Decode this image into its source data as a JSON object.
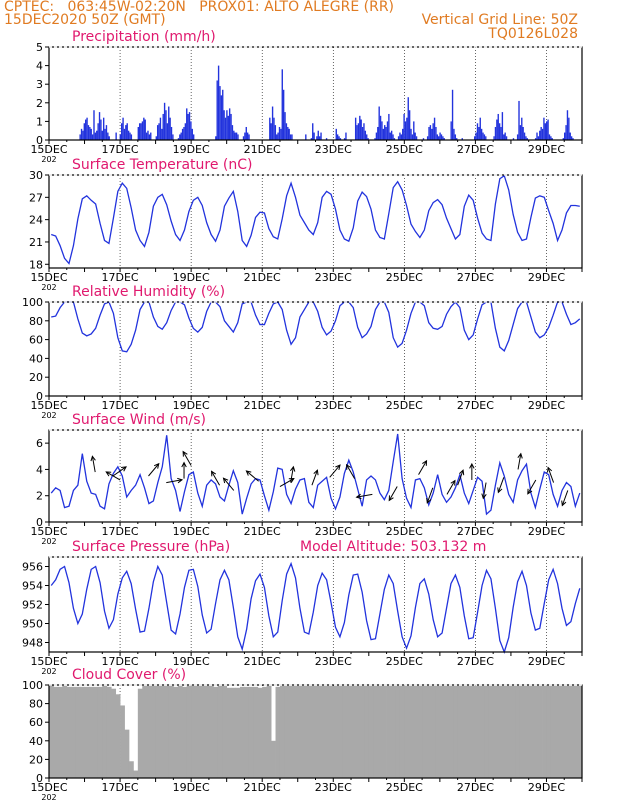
{
  "header": {
    "line1_left": "CPTEC:   063:45W-02:20N   PROX01: ALTO ALEGRE (RR)",
    "line2_left": "15DEC2020 50Z (GMT)",
    "line2_right": "Vertical Grid Line: 50Z",
    "line3_right": "TQ0126L028"
  },
  "colors": {
    "header": "#e07b22",
    "panel_title": "#e0196e",
    "series": "#2233dd",
    "wind_arrow": "#000000",
    "cloud": "#a9a9a9"
  },
  "x_axis": {
    "tick_labels": [
      "15DEC",
      "17DEC",
      "19DEC",
      "21DEC",
      "23DEC",
      "25DEC",
      "27DEC",
      "29DEC"
    ],
    "year_stub": "202"
  },
  "chart_data": [
    {
      "type": "bar",
      "title": "Precipitation (mm/h)",
      "ylim": [
        0,
        5
      ],
      "yticks": [
        0,
        1,
        2,
        3,
        4,
        5
      ],
      "x_range_days": [
        0,
        15
      ],
      "n_points": 360,
      "values": [
        0,
        0,
        0,
        0,
        0,
        0,
        0,
        0,
        0,
        0,
        0,
        0,
        0,
        0,
        0,
        0,
        0,
        0,
        0,
        0,
        0,
        0,
        0.3,
        0.6,
        0.5,
        0.9,
        1.1,
        1.2,
        0.8,
        0.7,
        0.6,
        0.3,
        1.6,
        0.4,
        0.5,
        0.9,
        1.5,
        1.1,
        0.5,
        1.2,
        0.6,
        0.8,
        0.4,
        0.2,
        0,
        0,
        0,
        0,
        0.4,
        0,
        0,
        0.3,
        0.9,
        1.2,
        0.6,
        0.8,
        0.9,
        0.5,
        0.4,
        0.3,
        0,
        0,
        0,
        0,
        0.7,
        0.9,
        0.9,
        1.0,
        1.2,
        1.1,
        0.4,
        0.5,
        0.3,
        0.4,
        0,
        0,
        0,
        0.2,
        0.8,
        0.9,
        1.2,
        0.6,
        1.4,
        2.0,
        1.6,
        0.9,
        1.8,
        1.2,
        0.7,
        0.3,
        0,
        0,
        0,
        0.1,
        0.3,
        0.4,
        0.6,
        0.7,
        0.9,
        1.7,
        1.4,
        1.5,
        1.0,
        0.6,
        0.3,
        0,
        0,
        0,
        0,
        0,
        0,
        0,
        0,
        0,
        0,
        0,
        0,
        0,
        0,
        0,
        0.2,
        3.2,
        4.0,
        2.9,
        2.4,
        2.7,
        1.6,
        1.2,
        1.6,
        1.3,
        1.7,
        1.4,
        0.8,
        0.5,
        0.4,
        0.4,
        0.3,
        0,
        0,
        0,
        0.2,
        0.4,
        0.7,
        0.4,
        0.3,
        0,
        0,
        0,
        0,
        0,
        0,
        0,
        0,
        0,
        0,
        0,
        0,
        0,
        0,
        1.2,
        0.9,
        1.8,
        1.2,
        0.8,
        0.3,
        0.4,
        0.7,
        0.6,
        3.8,
        2.7,
        1.5,
        0.9,
        0.7,
        0.6,
        0.3,
        0.3,
        0,
        0,
        0,
        0,
        0,
        0,
        0,
        0,
        0,
        0.3,
        0,
        0,
        0,
        0.1,
        0.9,
        0.4,
        0,
        0.2,
        0.5,
        0.2,
        0.4,
        0,
        0,
        0,
        0.1,
        0,
        0,
        0,
        0,
        0,
        0,
        0.6,
        0.3,
        0.2,
        0.1,
        0,
        0,
        0.1,
        0.4,
        0,
        0,
        0,
        0,
        0,
        0,
        1.2,
        0.8,
        0.9,
        1.3,
        1.1,
        0.7,
        0.9,
        0.5,
        0.3,
        0.1,
        0,
        0,
        0,
        0,
        0.1,
        0.4,
        0.7,
        1.8,
        1.3,
        1.0,
        0.6,
        0.8,
        0.7,
        1.0,
        1.4,
        0.4,
        0.5,
        0.3,
        0.1,
        0,
        0,
        0.2,
        0.4,
        0.3,
        0.6,
        1.4,
        1.0,
        1.2,
        2.3,
        1.6,
        0.6,
        0.3,
        1.0,
        0.4,
        0.2,
        0,
        0,
        0,
        0,
        0.1,
        0,
        0,
        0.2,
        0.7,
        0.8,
        0.6,
        0.9,
        1.2,
        0.7,
        0.3,
        0.2,
        0.4,
        0.3,
        0.2,
        0.1,
        0,
        0,
        0,
        0,
        1.0,
        2.7,
        0.6,
        0.3,
        0.1,
        0,
        0,
        0,
        0.1,
        0,
        0,
        0,
        0,
        0,
        0,
        0,
        0,
        0.2,
        0.4,
        0.9,
        0.7,
        1.2,
        0.6,
        0.4,
        0.3,
        0.2,
        0,
        0,
        0,
        0,
        0,
        0.2,
        0.7,
        1.1,
        1.4,
        0.9,
        0.7,
        1.5,
        0.3,
        0.4,
        0.2,
        0,
        0,
        0,
        0,
        0.1,
        0,
        0,
        0.3,
        2.1,
        0.8,
        1.2,
        0.7,
        0.4,
        0.2,
        0.1,
        0,
        0,
        0,
        0,
        0,
        0.1,
        0.4,
        0.2,
        0.5,
        0.7,
        0.6,
        1.2,
        0.9,
        1.0,
        1.1,
        0.3,
        0.2,
        0.1,
        0,
        0,
        0,
        0,
        0,
        0,
        0,
        0.1,
        0.4,
        0.8,
        1.6,
        1.2,
        0.4,
        0.2,
        0.1,
        0,
        0,
        0,
        0,
        0,
        0
      ]
    },
    {
      "type": "line",
      "title": "Surface Temperature (nC)",
      "ylim": [
        17.5,
        30
      ],
      "yticks": [
        18,
        21,
        24,
        27,
        30
      ],
      "x_range_days": [
        0,
        15
      ],
      "n_points": 120,
      "values": [
        22,
        21.8,
        20.5,
        18.8,
        18.1,
        20.5,
        24.1,
        26.8,
        27.2,
        26.6,
        26.1,
        23.5,
        21.2,
        20.8,
        24.2,
        27.8,
        28.9,
        28.2,
        25.6,
        22.6,
        21.2,
        20.4,
        22.3,
        25.8,
        27,
        27.4,
        26,
        23.8,
        22,
        21.2,
        22.6,
        25.1,
        26.6,
        27,
        25.9,
        23.6,
        22,
        21.1,
        22.6,
        25.8,
        26.9,
        27.8,
        25.1,
        21.2,
        20.4,
        21.9,
        24.3,
        25,
        24.9,
        22.8,
        21.7,
        21.4,
        24.1,
        27.2,
        28.9,
        27,
        24.6,
        23.6,
        22.6,
        22,
        23.6,
        27,
        27.8,
        27.4,
        25.4,
        22.6,
        21.4,
        21.1,
        22.9,
        26.5,
        27.7,
        27.1,
        25.4,
        22.6,
        21.6,
        21.4,
        24.8,
        28.3,
        29.1,
        28,
        25.9,
        23.4,
        22.4,
        21.6,
        22.6,
        25.2,
        26.3,
        26.7,
        26,
        24.2,
        22.8,
        21.4,
        22,
        25.8,
        27.3,
        26.6,
        24.2,
        22.2,
        21.4,
        21.2,
        26.1,
        29.5,
        29.9,
        28,
        24.7,
        22.3,
        21.2,
        21.4,
        24.3,
        26.9,
        27.2,
        27,
        25.2,
        23.5,
        21.2,
        22.6,
        24.9,
        25.9,
        25.9,
        25.8
      ]
    },
    {
      "type": "line",
      "title": "Relative Humidity (%)",
      "ylim": [
        0,
        100
      ],
      "yticks": [
        0,
        20,
        40,
        60,
        80,
        100
      ],
      "x_range_days": [
        0,
        15
      ],
      "n_points": 120,
      "values": [
        84,
        85,
        94,
        100,
        100,
        100,
        82,
        67,
        64,
        66,
        72,
        86,
        98,
        100,
        88,
        62,
        48,
        47,
        55,
        70,
        92,
        100,
        100,
        84,
        74,
        71,
        78,
        91,
        100,
        100,
        97,
        83,
        72,
        68,
        73,
        90,
        100,
        100,
        95,
        80,
        74,
        68,
        78,
        98,
        100,
        100,
        86,
        76,
        76,
        88,
        98,
        100,
        92,
        70,
        55,
        62,
        84,
        92,
        100,
        100,
        90,
        73,
        65,
        69,
        80,
        96,
        100,
        100,
        94,
        73,
        62,
        66,
        74,
        92,
        100,
        100,
        89,
        62,
        52,
        56,
        70,
        88,
        100,
        100,
        96,
        78,
        72,
        71,
        74,
        87,
        95,
        100,
        94,
        70,
        60,
        65,
        82,
        97,
        100,
        100,
        72,
        52,
        48,
        59,
        76,
        93,
        100,
        100,
        84,
        68,
        62,
        65,
        73,
        86,
        100,
        100,
        87,
        76,
        78,
        82
      ]
    },
    {
      "type": "line",
      "title": "Surface Wind (m/s)",
      "ylim": [
        0,
        7
      ],
      "yticks": [
        0,
        2,
        4,
        6
      ],
      "x_range_days": [
        0,
        15
      ],
      "n_points": 120,
      "values": [
        2.2,
        2.6,
        2.4,
        1.1,
        1.2,
        2.4,
        2.8,
        5.2,
        3.1,
        2.2,
        2.1,
        1.2,
        1.0,
        2.9,
        3.7,
        4.2,
        3.5,
        1.9,
        2.4,
        2.8,
        3.6,
        2.6,
        1.4,
        1.6,
        3.0,
        4.2,
        6.6,
        3.3,
        2.4,
        0.8,
        2.3,
        3.6,
        3.8,
        2.2,
        1.2,
        2.8,
        3.2,
        2.9,
        1.9,
        1.6,
        2.8,
        3.9,
        3.0,
        0.6,
        1.8,
        2.9,
        3.3,
        3.2,
        2.0,
        0.9,
        2.3,
        4.1,
        4.0,
        2.1,
        1.4,
        2.5,
        3.2,
        3.3,
        1.5,
        1.1,
        2.8,
        3.1,
        3.4,
        1.8,
        1.0,
        1.9,
        3.7,
        4.7,
        3.8,
        2.5,
        1.2,
        3.2,
        3.5,
        3.2,
        2.2,
        1.7,
        2.4,
        4.6,
        6.7,
        3.3,
        1.8,
        1.1,
        3.2,
        3.3,
        2.6,
        1.3,
        2.2,
        3.6,
        2.1,
        1.5,
        1.9,
        2.6,
        3.6,
        2.2,
        1.4,
        2.4,
        3.4,
        3.1,
        0.6,
        0.9,
        2.8,
        4.5,
        3.5,
        2.1,
        1.5,
        3.2,
        3.9,
        4.4,
        2.2,
        1.1,
        2.5,
        3.8,
        3.6,
        2.1,
        1.2,
        2.4,
        3.0,
        2.7,
        1.2,
        2.2
      ],
      "arrows": [
        {
          "day": 1.3,
          "speed": 3.8,
          "dir_deg": 100
        },
        {
          "day": 1.8,
          "speed": 3.5,
          "dir_deg": 35
        },
        {
          "day": 2.0,
          "speed": 3.2,
          "dir_deg": 150
        },
        {
          "day": 2.8,
          "speed": 3.5,
          "dir_deg": 50
        },
        {
          "day": 3.3,
          "speed": 3.0,
          "dir_deg": 10
        },
        {
          "day": 3.8,
          "speed": 3.3,
          "dir_deg": 90
        },
        {
          "day": 4.0,
          "speed": 4.3,
          "dir_deg": 120
        },
        {
          "day": 4.8,
          "speed": 2.8,
          "dir_deg": 120
        },
        {
          "day": 5.2,
          "speed": 2.4,
          "dir_deg": 130
        },
        {
          "day": 5.9,
          "speed": 3.1,
          "dir_deg": 140
        },
        {
          "day": 6.5,
          "speed": 2.7,
          "dir_deg": 30
        },
        {
          "day": 6.8,
          "speed": 3.0,
          "dir_deg": 80
        },
        {
          "day": 7.4,
          "speed": 2.8,
          "dir_deg": 70
        },
        {
          "day": 7.9,
          "speed": 3.4,
          "dir_deg": 50
        },
        {
          "day": 8.6,
          "speed": 3.3,
          "dir_deg": 120
        },
        {
          "day": 9.1,
          "speed": 2.1,
          "dir_deg": 190
        },
        {
          "day": 9.8,
          "speed": 2.7,
          "dir_deg": 240
        },
        {
          "day": 10.4,
          "speed": 3.6,
          "dir_deg": 60
        },
        {
          "day": 10.8,
          "speed": 2.6,
          "dir_deg": 250
        },
        {
          "day": 11.2,
          "speed": 2.1,
          "dir_deg": 60
        },
        {
          "day": 11.5,
          "speed": 2.8,
          "dir_deg": 70
        },
        {
          "day": 11.9,
          "speed": 3.2,
          "dir_deg": 90
        },
        {
          "day": 12.3,
          "speed": 3.0,
          "dir_deg": 260
        },
        {
          "day": 12.8,
          "speed": 3.4,
          "dir_deg": 250
        },
        {
          "day": 13.2,
          "speed": 4.0,
          "dir_deg": 80
        },
        {
          "day": 13.7,
          "speed": 3.2,
          "dir_deg": 240
        },
        {
          "day": 14.2,
          "speed": 3.0,
          "dir_deg": 110
        },
        {
          "day": 14.6,
          "speed": 2.4,
          "dir_deg": 250
        }
      ]
    },
    {
      "type": "line",
      "title": "Surface Pressure (hPa)",
      "annotation": "Model Altitude: 503.132 m",
      "ylim": [
        947,
        957
      ],
      "yticks": [
        948,
        950,
        952,
        954,
        956
      ],
      "x_range_days": [
        0,
        15
      ],
      "n_points": 120,
      "values": [
        954,
        954.6,
        955.7,
        956,
        954.3,
        951.6,
        950,
        951,
        953.6,
        955.7,
        956,
        954.3,
        951.3,
        949.5,
        950.4,
        953.1,
        954.8,
        955.5,
        954.2,
        951.5,
        949.1,
        949.2,
        951.6,
        954.4,
        956,
        955.1,
        952.2,
        949.3,
        948.9,
        951,
        953.8,
        955.6,
        955.7,
        953.9,
        950.9,
        949,
        949.4,
        952.1,
        954.6,
        955.6,
        954.6,
        951.7,
        948.6,
        947.3,
        949.4,
        952.6,
        954.5,
        955.2,
        953.8,
        950.8,
        948.6,
        949.1,
        952.4,
        955.2,
        956.3,
        954.8,
        951.6,
        949.1,
        948.9,
        951.2,
        954,
        955.3,
        954.6,
        952.2,
        949.6,
        948.6,
        950.1,
        953,
        955.1,
        955.2,
        953.3,
        950.3,
        948.3,
        948.4,
        951,
        953.6,
        955.1,
        954.2,
        951.3,
        948.6,
        947.4,
        948.7,
        951.7,
        954.2,
        954.7,
        953.1,
        950.4,
        948.6,
        949,
        951.6,
        954.2,
        955.1,
        953.8,
        950.8,
        948.4,
        948.5,
        951.2,
        954,
        955.6,
        954.7,
        951.6,
        948.2,
        947,
        948.5,
        951.7,
        954.4,
        955.5,
        954,
        951.1,
        949.3,
        949.5,
        952.1,
        954.6,
        955.7,
        954.2,
        951.6,
        949.8,
        950.2,
        952.1,
        953.7
      ]
    },
    {
      "type": "area",
      "title": "Cloud Cover (%)",
      "ylim": [
        0,
        100
      ],
      "yticks": [
        0,
        20,
        40,
        60,
        80,
        100
      ],
      "x_range_days": [
        0,
        15
      ],
      "n_points": 120,
      "values": [
        100,
        98,
        98,
        99,
        98,
        98,
        98,
        98,
        98,
        98,
        98,
        98,
        99,
        98,
        96,
        90,
        78,
        52,
        18,
        8,
        96,
        99,
        99,
        99,
        99,
        99,
        99,
        99,
        98,
        99,
        98,
        99,
        99,
        99,
        99,
        99,
        99,
        98,
        99,
        99,
        97,
        97,
        97,
        98,
        98,
        98,
        98,
        97,
        98,
        99,
        40,
        98,
        99,
        99,
        99,
        99,
        99,
        99,
        99,
        99,
        99,
        99,
        99,
        99,
        99,
        99,
        99,
        99,
        99,
        99,
        99,
        99,
        99,
        99,
        99,
        99,
        99,
        99,
        99,
        99,
        99,
        99,
        99,
        99,
        99,
        99,
        99,
        99,
        99,
        99,
        99,
        99,
        99,
        99,
        99,
        99,
        99,
        99,
        99,
        99,
        99,
        99,
        99,
        99,
        99,
        99,
        99,
        99,
        99,
        99,
        99,
        99,
        99,
        99,
        99,
        99,
        99,
        99,
        99,
        99
      ]
    }
  ]
}
